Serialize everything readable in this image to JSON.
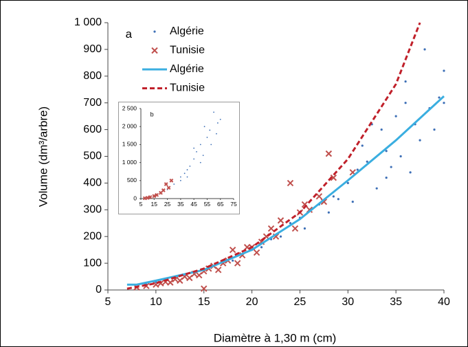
{
  "chart_data": [
    {
      "type": "scatter",
      "label": "a",
      "x_label": "Diamètre à 1,30 m (cm)",
      "y_label": "Volume (dm³/arbre)",
      "xlim": [
        5,
        40
      ],
      "xticks": [
        5,
        10,
        15,
        20,
        25,
        30,
        35,
        40
      ],
      "ylim": [
        0,
        1000
      ],
      "yticks": [
        0,
        100,
        200,
        300,
        400,
        500,
        600,
        700,
        800,
        900,
        {
          "value": 1000,
          "label": "1 000"
        }
      ],
      "legend": "top-left",
      "series": [
        {
          "name": "Algérie",
          "marker": "dot",
          "color": "#3d6fb6",
          "x": [
            8,
            9,
            10,
            11,
            12,
            13,
            14,
            15,
            16,
            17,
            18,
            19,
            20,
            21,
            22,
            23,
            24,
            25,
            25.5,
            26,
            27,
            28,
            28.5,
            29,
            30,
            30.5,
            31,
            31.5,
            32,
            33,
            33.5,
            34,
            34.5,
            35,
            35.5,
            36,
            36.5,
            37,
            37.5,
            38,
            38.5,
            39,
            39.5,
            40,
            40,
            36,
            34,
            32.5
          ],
          "y": [
            12,
            20,
            30,
            35,
            45,
            50,
            60,
            70,
            90,
            100,
            110,
            130,
            150,
            160,
            190,
            200,
            250,
            270,
            230,
            300,
            320,
            290,
            350,
            340,
            400,
            330,
            450,
            540,
            480,
            380,
            600,
            520,
            460,
            650,
            500,
            700,
            440,
            620,
            560,
            900,
            680,
            600,
            720,
            820,
            700,
            780,
            420,
            620
          ]
        },
        {
          "name": "Tunisie",
          "marker": "x",
          "color": "#c0504d",
          "x": [
            8,
            9,
            10,
            10.5,
            11,
            11.5,
            12,
            12.5,
            13,
            13.5,
            14,
            14.5,
            15,
            15,
            15.5,
            16,
            16.5,
            17,
            17.5,
            18,
            18.5,
            19,
            19.5,
            20,
            20.5,
            21,
            21.5,
            22,
            22.5,
            23,
            24,
            24.5,
            25,
            25.5,
            26,
            27,
            27.5,
            28,
            28.5,
            30.5
          ],
          "y": [
            10,
            15,
            20,
            25,
            30,
            28,
            40,
            35,
            50,
            45,
            60,
            55,
            70,
            5,
            80,
            90,
            75,
            100,
            110,
            150,
            100,
            130,
            160,
            160,
            140,
            180,
            200,
            230,
            200,
            260,
            400,
            230,
            290,
            320,
            300,
            350,
            330,
            510,
            420,
            440
          ]
        },
        {
          "name": "Algérie",
          "line": "solid",
          "color": "#3aaee0",
          "x": [
            7,
            8,
            10,
            15,
            20,
            25,
            30,
            35,
            40
          ],
          "y": [
            20,
            20,
            35,
            75,
            150,
            265,
            410,
            560,
            725
          ]
        },
        {
          "name": "Tunisie",
          "line": "dashed",
          "color": "#c0202a",
          "x": [
            7,
            10,
            15,
            20,
            25,
            30,
            35,
            37.5
          ],
          "y": [
            5,
            25,
            80,
            160,
            290,
            490,
            770,
            1000
          ]
        }
      ]
    },
    {
      "type": "scatter",
      "label": "b",
      "xlim": [
        5,
        75
      ],
      "xticks": [
        5,
        15,
        25,
        35,
        45,
        55,
        65,
        75
      ],
      "ylim": [
        0,
        2500
      ],
      "yticks": [
        0,
        500,
        {
          "value": 1000,
          "label": "1 000"
        },
        {
          "value": 1500,
          "label": "1 500"
        },
        {
          "value": 2000,
          "label": "2 000"
        },
        {
          "value": 2500,
          "label": "2 500"
        }
      ],
      "series": [
        {
          "name": "Algérie",
          "marker": "dot",
          "color": "#3d6fb6",
          "x": [
            10,
            15,
            20,
            25,
            30,
            35,
            38,
            40,
            42,
            45,
            47,
            50,
            52,
            55,
            57,
            58,
            60,
            62,
            63,
            65,
            45,
            50,
            53,
            40,
            35
          ],
          "y": [
            20,
            80,
            150,
            250,
            400,
            600,
            700,
            800,
            900,
            1100,
            1300,
            1500,
            1200,
            1700,
            1900,
            1500,
            2400,
            1800,
            2100,
            2200,
            1400,
            1000,
            2000,
            600,
            500
          ]
        },
        {
          "name": "Tunisie",
          "marker": "x",
          "color": "#c0504d",
          "x": [
            8,
            10,
            12,
            15,
            17,
            20,
            22,
            24,
            26,
            28
          ],
          "y": [
            10,
            20,
            40,
            70,
            100,
            160,
            230,
            400,
            300,
            500
          ]
        }
      ]
    }
  ]
}
